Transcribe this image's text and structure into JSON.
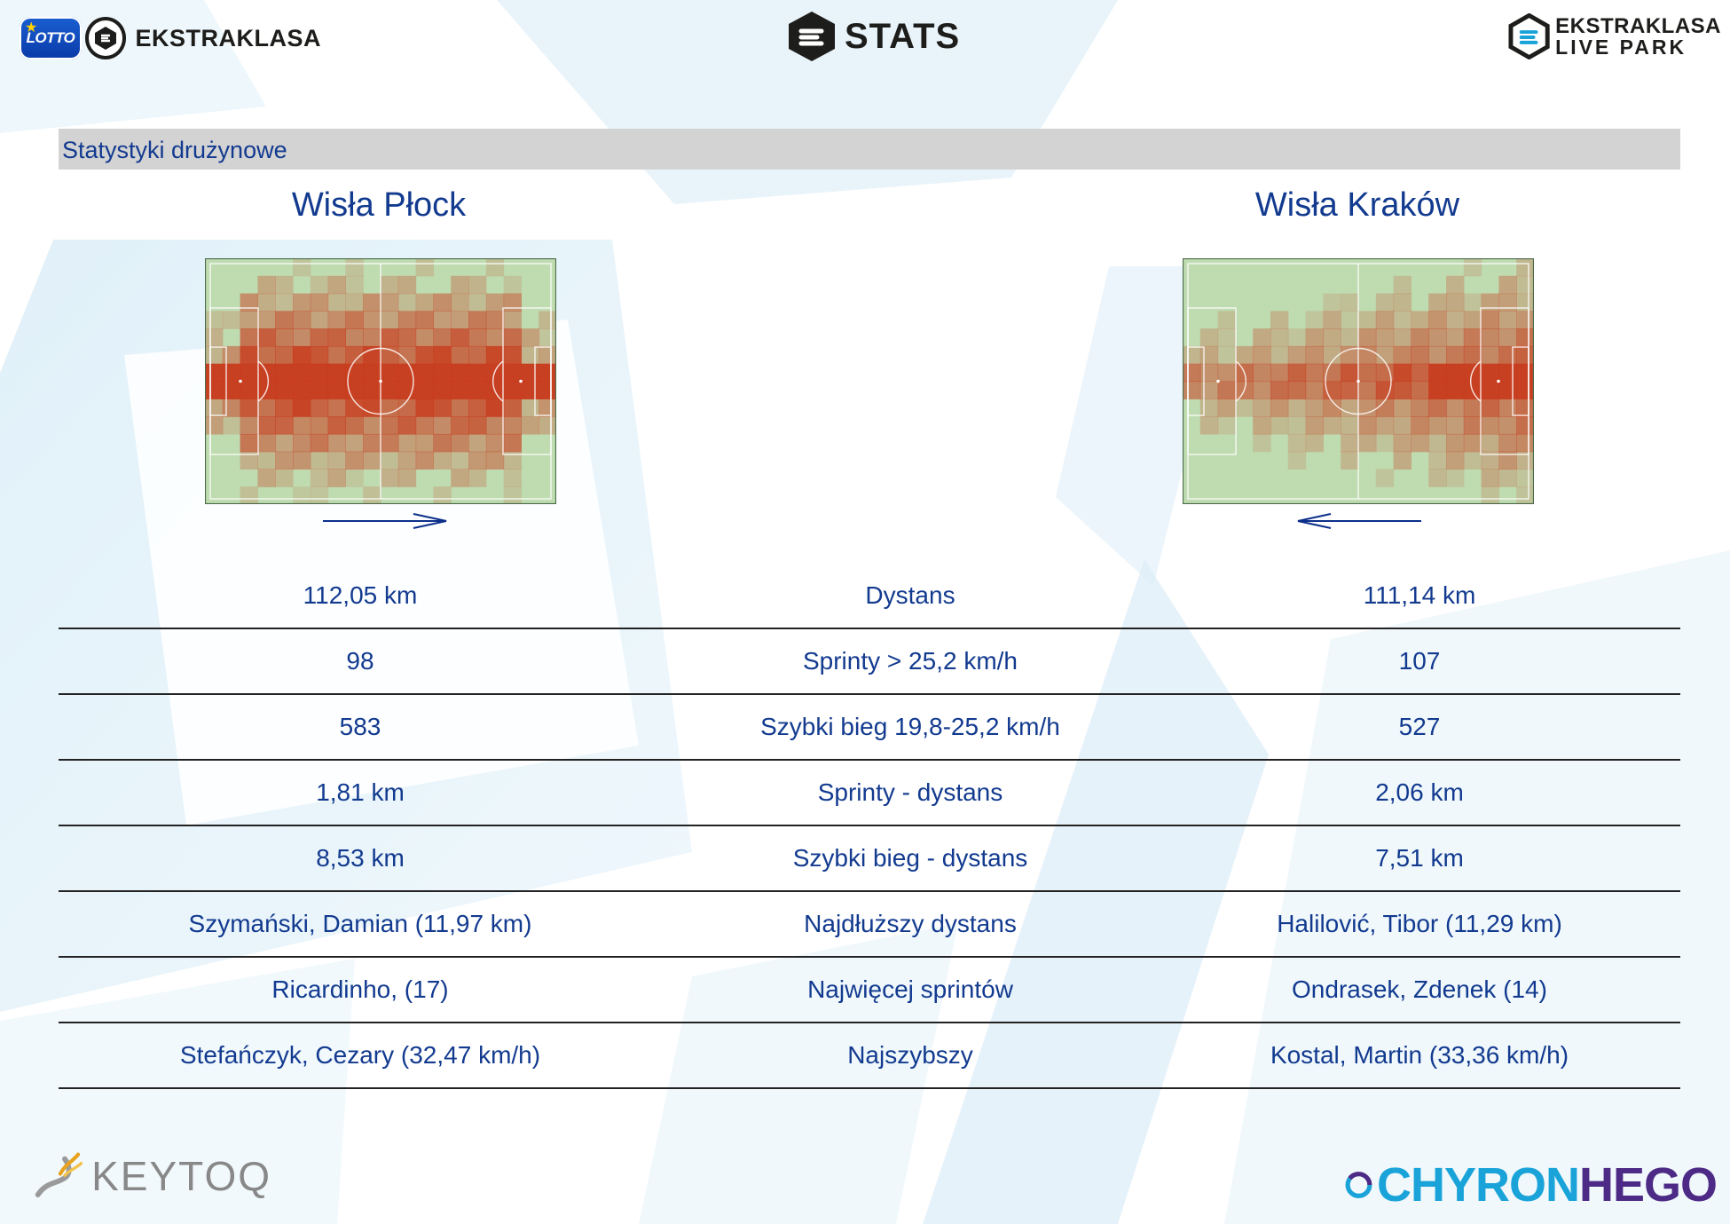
{
  "header": {
    "lotto_label": "LOTTO",
    "brand_label": "EKSTRAKLASA",
    "stats_label": "STATS",
    "livepark_line1": "EKSTRAKLASA",
    "livepark_line2": "LIVE PARK"
  },
  "section_title": "Statystyki drużynowe",
  "teams": {
    "home": "Wisła Płock",
    "away": "Wisła Kraków"
  },
  "heatmaps": {
    "home_direction": "right",
    "away_direction": "left"
  },
  "stats": [
    {
      "home": "112,05 km",
      "label": "Dystans",
      "away": "111,14 km"
    },
    {
      "home": "98",
      "label": "Sprinty > 25,2 km/h",
      "away": "107"
    },
    {
      "home": "583",
      "label": "Szybki bieg 19,8-25,2 km/h",
      "away": "527"
    },
    {
      "home": "1,81 km",
      "label": "Sprinty - dystans",
      "away": "2,06 km"
    },
    {
      "home": "8,53 km",
      "label": "Szybki bieg - dystans",
      "away": "7,51 km"
    },
    {
      "home": "Szymański, Damian (11,97 km)",
      "label": "Najdłuższy dystans",
      "away": "Halilović, Tibor (11,29 km)"
    },
    {
      "home": "Ricardinho,  (17)",
      "label": "Najwięcej sprintów",
      "away": "Ondrasek, Zdenek (14)"
    },
    {
      "home": "Stefańczyk, Cezary (32,47 km/h)",
      "label": "Najszybszy",
      "away": "Kostal, Martin (33,36 km/h)"
    }
  ],
  "footer": {
    "keytoq": "KEYTOQ",
    "chyron_a": "CHYRON",
    "chyron_b": "HEGO"
  },
  "colors": {
    "primary_text": "#123a8f",
    "band": "#d3d3d3",
    "pitch_green": "#bfdbb0",
    "heat_red": "#c8381a"
  }
}
